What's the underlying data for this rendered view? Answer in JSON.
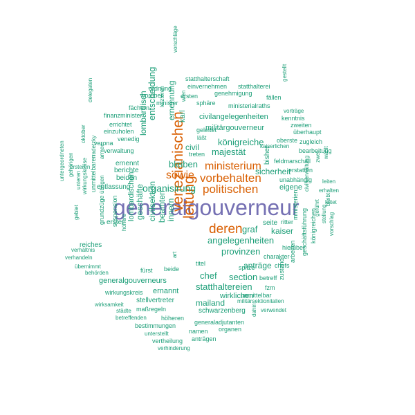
{
  "palette": {
    "teal": "#1b9e77",
    "orange": "#d95f02",
    "purple": "#7570b3"
  },
  "words": [
    "generalgouverneur",
    "venezianischen",
    "leitung",
    "deren",
    "politischen",
    "vorbehalten",
    "ministerium",
    "sowie",
    "organisirung",
    "bleiben",
    "königreiche",
    "majestät",
    "provinzen",
    "angelegenheiten",
    "graf",
    "kaiser",
    "sicherheit",
    "statthaltereien",
    "section",
    "chef",
    "mailand",
    "wirklichen",
    "anträge",
    "civilsektion",
    "beamten",
    "innern",
    "geschäfte",
    "lombardisch",
    "entscheidung",
    "ernennung",
    "civil",
    "karl",
    "militärgouverneur",
    "civilangelegenheiten",
    "schwarzenberg",
    "generalgouverneurs",
    "ernannt",
    "stellvertreter",
    "entlassung",
    "beiden",
    "berichte",
    "ernennt",
    "erster",
    "suspension",
    "lombardischen",
    "höhere",
    "reiches",
    "übernimmt",
    "verhandeln",
    "grundzüge",
    "unmittelbaren",
    "wirkungskreise",
    "wirkungskreis",
    "maßregeln",
    "höheren",
    "bestimmungen",
    "unterstellt",
    "vertheilung",
    "verhinderung",
    "generaladjutanten",
    "organen",
    "namen",
    "anträgen",
    "städte",
    "betreffenden",
    "wirksamkeit",
    "dahin",
    "verwendet",
    "militärsektionitalien",
    "unmittelbar",
    "fzm",
    "betreff",
    "zustand",
    "spitze",
    "titel",
    "art",
    "fürst",
    "beide",
    "behörden",
    "ministerien",
    "eigene",
    "unabhängig",
    "bisher",
    "charakter",
    "chefs",
    "hierüber",
    "seite",
    "ritter",
    "arbeiten",
    "geschäftsführung",
    "königreichen",
    "civilverwaltung",
    "geführt",
    "stellung",
    "bleibt",
    "leitet",
    "vorschlag",
    "erhalten",
    "leiten",
    "wählt",
    "zwei",
    "feldmarschall",
    "erstatten",
    "bearbeitung",
    "oberste",
    "kaiserlichen",
    "zugleich",
    "zweiten",
    "überhaupt",
    "kenntnis",
    "vorträge",
    "fällen",
    "gestellt",
    "ministerialraths",
    "statthalterei",
    "genehmigung",
    "einvernehmen",
    "statthalterschaft",
    "ordnung",
    "worüber",
    "minister",
    "sphäre",
    "ersten",
    "vorschläge",
    "wien",
    "letzteren",
    "geleitet",
    "läßt",
    "treten",
    "finanzminister",
    "fächern",
    "errichtet",
    "einzuholen",
    "venedig",
    "verona",
    "verwaltung",
    "ersteren",
    "radetzky",
    "armee",
    "oktober",
    "delegaten",
    "übrigen",
    "unteren",
    "gebiet",
    "verhältnis",
    "gehörigen",
    "untergeordneten"
  ]
}
